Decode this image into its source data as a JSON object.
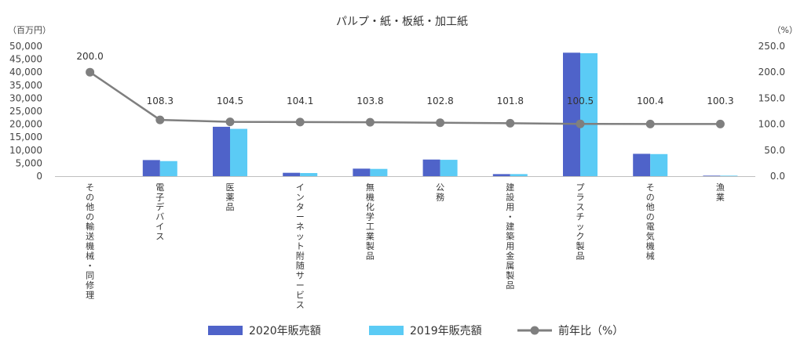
{
  "chart_data": {
    "type": "bar",
    "title": "パルプ・紙・板紙・加工紙",
    "ylabel_left": "（百万円）",
    "ylabel_right": "（%）",
    "categories": [
      "その他の輸送機械・同修理",
      "電子デバイス",
      "医薬品",
      "インターネット附随サービス",
      "無機化学工業製品",
      "公務",
      "建設用・建築用金属製品",
      "プラスチック製品",
      "その他の電気機械",
      "漁業"
    ],
    "series": [
      {
        "name": "2020年販売額",
        "type": "bar",
        "axis": "left",
        "color": "#4F63C9",
        "values": [
          0,
          6200,
          19000,
          1300,
          2900,
          6400,
          800,
          47500,
          8600,
          200
        ]
      },
      {
        "name": "2019年販売額",
        "type": "bar",
        "axis": "left",
        "color": "#5BCBF5",
        "values": [
          0,
          5800,
          18200,
          1200,
          2800,
          6300,
          800,
          47300,
          8500,
          200
        ]
      },
      {
        "name": "前年比（%）",
        "type": "line",
        "axis": "right",
        "color": "#7F7F7F",
        "values": [
          200.0,
          108.3,
          104.5,
          104.1,
          103.8,
          102.8,
          101.8,
          100.5,
          100.4,
          100.3
        ],
        "labels": [
          "200.0",
          "108.3",
          "104.5",
          "104.1",
          "103.8",
          "102.8",
          "101.8",
          "100.5",
          "100.4",
          "100.3"
        ]
      }
    ],
    "ylim_left": [
      0,
      50000
    ],
    "yticks_left": [
      "0",
      "5,000",
      "10,000",
      "15,000",
      "20,000",
      "25,000",
      "30,000",
      "35,000",
      "40,000",
      "45,000",
      "50,000"
    ],
    "ylim_right": [
      0,
      250
    ],
    "yticks_right": [
      "0.0",
      "50.0",
      "100.0",
      "150.0",
      "200.0",
      "250.0"
    ],
    "grid": false,
    "legend": "bottom"
  }
}
